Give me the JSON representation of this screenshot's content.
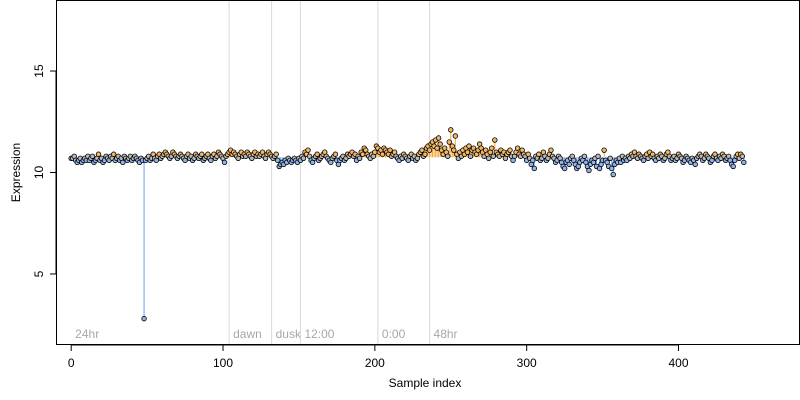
{
  "chart_data": {
    "type": "scatter",
    "title": "",
    "xlabel": "Sample index",
    "ylabel": "Expression",
    "xlim": [
      -10,
      480
    ],
    "ylim": [
      1.5,
      18.5
    ],
    "xticks": [
      0,
      100,
      200,
      300,
      400
    ],
    "yticks": [
      5,
      10,
      15
    ],
    "baseline": 10.75,
    "grid": false,
    "legend": "none",
    "colors": {
      "point_fill_default": "#b8b8b8",
      "point_fill_high": "#f2b765",
      "point_fill_low": "#8fb3ea",
      "point_stroke": "#000000",
      "stem_high": "#f2a53c",
      "stem_low": "#6f9ee8",
      "phase_line": "#d9d9d9",
      "phase_label": "#a8a8a8"
    },
    "phase_markers": [
      {
        "label": "24hr",
        "x": 0
      },
      {
        "label": "dawn",
        "x": 104
      },
      {
        "label": "dusk",
        "x": 132
      },
      {
        "label": "12:00",
        "x": 151
      },
      {
        "label": "0:00",
        "x": 202
      },
      {
        "label": "48hr",
        "x": 236
      }
    ],
    "values": [
      10.7,
      10.7,
      10.8,
      10.6,
      10.5,
      10.6,
      10.7,
      10.5,
      10.6,
      10.7,
      10.6,
      10.8,
      10.6,
      10.7,
      10.8,
      10.5,
      10.6,
      10.7,
      10.9,
      10.6,
      10.7,
      10.5,
      10.6,
      10.8,
      10.7,
      10.6,
      10.8,
      10.7,
      10.9,
      10.6,
      10.7,
      10.8,
      10.6,
      10.7,
      10.5,
      10.8,
      10.7,
      10.6,
      10.7,
      10.8,
      10.6,
      10.7,
      10.8,
      10.7,
      10.6,
      10.5,
      10.7,
      10.6,
      2.8,
      10.6,
      10.7,
      10.8,
      10.6,
      10.7,
      10.9,
      10.7,
      10.6,
      10.8,
      10.9,
      10.7,
      10.8,
      10.9,
      11.0,
      10.9,
      10.8,
      10.7,
      10.8,
      11.0,
      10.9,
      10.8,
      10.7,
      10.8,
      10.9,
      10.8,
      10.7,
      10.6,
      10.8,
      10.9,
      10.7,
      10.8,
      10.6,
      10.7,
      10.9,
      10.8,
      10.7,
      10.8,
      10.9,
      10.6,
      10.7,
      10.8,
      10.9,
      10.7,
      10.6,
      10.8,
      10.9,
      10.7,
      10.8,
      11.0,
      10.9,
      10.8,
      10.7,
      10.5,
      10.8,
      10.9,
      11.0,
      11.1,
      10.9,
      11.0,
      10.9,
      10.8,
      10.7,
      10.9,
      11.0,
      10.8,
      10.9,
      10.8,
      11.0,
      10.9,
      10.8,
      10.7,
      10.9,
      11.0,
      10.8,
      10.9,
      10.8,
      10.9,
      11.0,
      10.8,
      10.7,
      10.9,
      11.0,
      10.9,
      10.8,
      10.7,
      10.8,
      10.9,
      10.6,
      10.3,
      10.4,
      10.5,
      10.4,
      10.6,
      10.5,
      10.7,
      10.6,
      10.5,
      10.6,
      10.7,
      10.6,
      10.5,
      10.7,
      10.6,
      10.8,
      10.7,
      11.0,
      10.9,
      11.1,
      10.8,
      10.6,
      10.5,
      10.7,
      10.8,
      10.9,
      10.6,
      10.7,
      10.8,
      10.9,
      11.0,
      10.8,
      10.7,
      10.6,
      10.5,
      10.7,
      10.8,
      10.9,
      10.6,
      10.4,
      10.6,
      10.7,
      10.8,
      10.6,
      10.7,
      10.9,
      10.8,
      10.9,
      11.0,
      10.8,
      10.9,
      10.6,
      10.8,
      10.7,
      11.0,
      10.9,
      11.2,
      11.1,
      10.9,
      10.8,
      10.7,
      10.9,
      10.8,
      11.0,
      11.3,
      11.2,
      11.0,
      11.1,
      10.9,
      11.2,
      11.1,
      11.0,
      10.9,
      11.1,
      10.8,
      10.9,
      11.0,
      10.8,
      10.7,
      10.6,
      10.8,
      10.7,
      10.9,
      10.8,
      10.7,
      10.6,
      10.8,
      10.9,
      10.7,
      10.8,
      10.6,
      10.7,
      10.9,
      11.0,
      11.1,
      10.8,
      10.9,
      11.2,
      11.3,
      11.1,
      11.4,
      11.5,
      11.3,
      11.6,
      11.2,
      11.7,
      11.4,
      11.1,
      10.9,
      11.2,
      11.0,
      10.8,
      11.5,
      12.1,
      11.3,
      11.1,
      11.8,
      10.9,
      10.7,
      11.0,
      10.8,
      11.1,
      10.9,
      11.2,
      11.0,
      11.3,
      10.8,
      11.1,
      11.2,
      11.0,
      10.9,
      11.1,
      11.4,
      11.2,
      11.0,
      10.8,
      11.1,
      10.9,
      10.7,
      11.0,
      11.2,
      10.8,
      11.6,
      11.0,
      10.9,
      10.8,
      11.1,
      10.9,
      11.0,
      10.7,
      10.9,
      11.0,
      11.1,
      10.8,
      10.6,
      10.8,
      11.0,
      11.2,
      10.9,
      10.8,
      11.1,
      10.9,
      10.8,
      10.6,
      10.9,
      10.7,
      10.4,
      10.6,
      10.2,
      10.8,
      10.7,
      10.9,
      10.6,
      10.7,
      11.0,
      10.8,
      10.6,
      10.7,
      10.9,
      11.1,
      10.8,
      10.7,
      10.5,
      10.6,
      10.8,
      10.7,
      10.5,
      10.3,
      10.2,
      10.5,
      10.6,
      10.4,
      10.7,
      10.8,
      10.6,
      10.4,
      10.2,
      10.3,
      10.5,
      10.7,
      10.6,
      10.8,
      10.5,
      10.3,
      10.1,
      10.4,
      10.6,
      10.5,
      10.7,
      10.3,
      10.8,
      10.2,
      10.4,
      10.6,
      11.1,
      10.6,
      10.5,
      10.3,
      10.7,
      10.2,
      9.9,
      10.4,
      10.6,
      10.5,
      10.7,
      10.5,
      10.8,
      10.6,
      10.7,
      10.6,
      10.8,
      10.7,
      10.9,
      10.8,
      11.0,
      10.8,
      10.7,
      10.9,
      10.8,
      10.7,
      10.6,
      10.8,
      10.9,
      10.7,
      11.0,
      10.8,
      10.9,
      10.7,
      10.6,
      10.8,
      10.7,
      10.9,
      10.8,
      10.6,
      10.7,
      10.9,
      11.0,
      10.8,
      10.6,
      10.7,
      10.8,
      10.6,
      10.7,
      10.9,
      10.8,
      10.7,
      10.5,
      10.6,
      10.8,
      10.7,
      10.6,
      10.5,
      10.7,
      10.6,
      10.4,
      10.7,
      10.8,
      10.9,
      10.8,
      10.6,
      10.7,
      10.9,
      10.8,
      10.7,
      10.5,
      10.6,
      10.8,
      10.9,
      10.7,
      10.6,
      10.8,
      10.7,
      10.9,
      10.8,
      10.6,
      10.7,
      10.8,
      10.6,
      10.4,
      10.3,
      10.6,
      10.8,
      10.9,
      10.7,
      10.9,
      10.8,
      10.5
    ]
  }
}
